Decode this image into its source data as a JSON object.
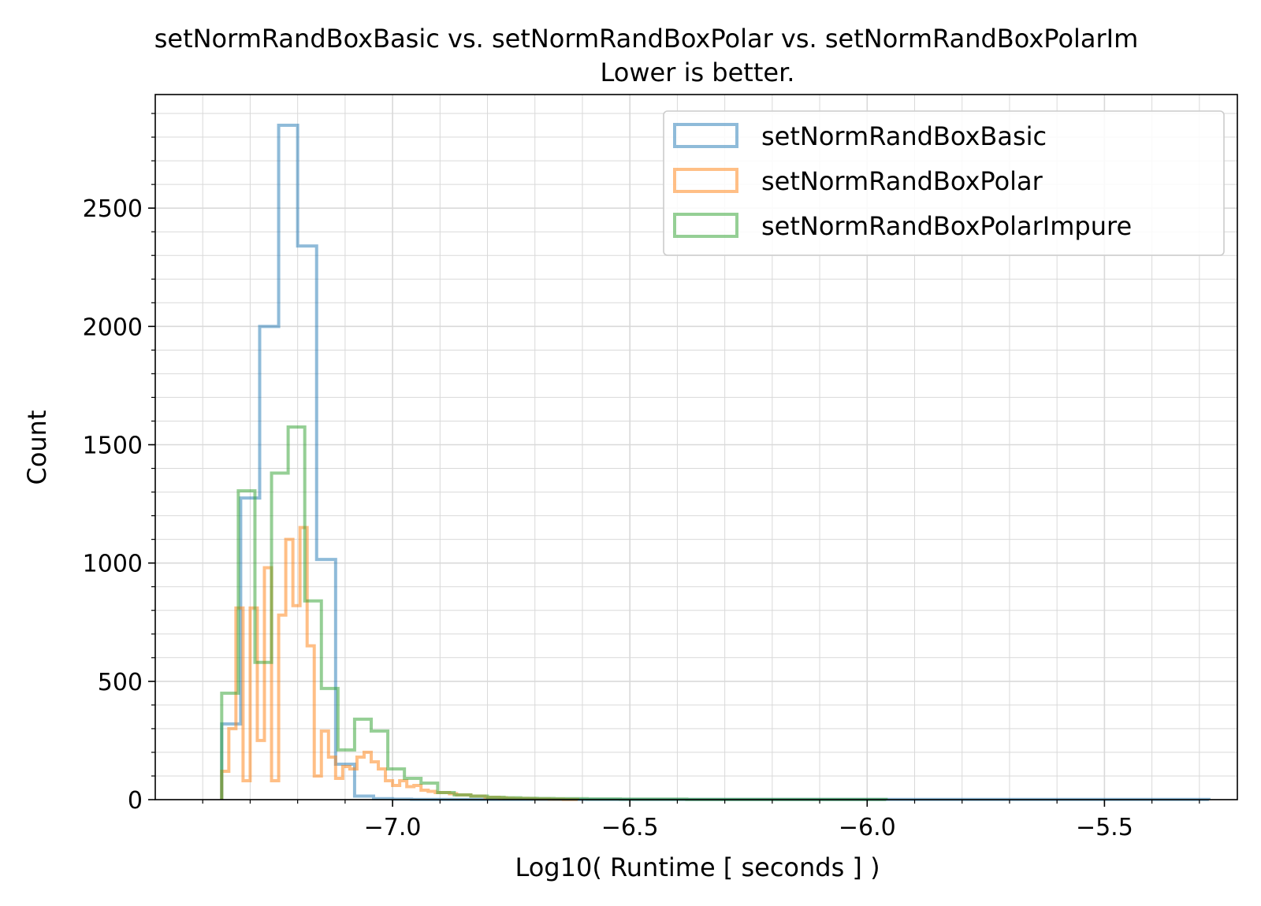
{
  "colors": {
    "basic": "#1f77b4",
    "polar": "#ff7f0e",
    "impure": "#2ca02c",
    "grid": "#d9d9d9",
    "axis": "#000000"
  },
  "chart_data": {
    "type": "histogram",
    "title": "setNormRandBoxBasic vs. setNormRandBoxPolar vs. setNormRandBoxPolarIm",
    "subtitle": "Lower is better.",
    "xlabel": "Log10( Runtime [ seconds ] )",
    "ylabel": "Count",
    "xlim": [
      -7.5,
      -5.22
    ],
    "ylim": [
      0,
      2980
    ],
    "xticks": [
      -7.0,
      -6.5,
      -6.0,
      -5.5
    ],
    "xtick_labels": [
      "−7.0",
      "−6.5",
      "−6.0",
      "−5.5"
    ],
    "yticks": [
      0,
      500,
      1000,
      1500,
      2000,
      2500
    ],
    "ytick_labels": [
      "0",
      "500",
      "1000",
      "1500",
      "2000",
      "2500"
    ],
    "grid": "on, major and minor",
    "legend_position": "top-right",
    "series": [
      {
        "name": "setNormRandBoxBasic",
        "color": "basic",
        "edges": [
          -7.36,
          -7.32,
          -7.28,
          -7.24,
          -7.2,
          -7.16,
          -7.12,
          -7.08,
          -7.04,
          -7.0,
          -6.96,
          -6.92,
          -6.88,
          -6.84,
          -6.8,
          -6.76,
          -6.72,
          -6.68,
          -6.64,
          -6.6,
          -6.56,
          -6.52,
          -6.48,
          -6.44,
          -6.4,
          -6.36,
          -6.32,
          -6.28,
          -6.24,
          -6.2,
          -6.16,
          -6.12,
          -6.08,
          -6.04,
          -6.0,
          -5.96,
          -5.92,
          -5.88,
          -5.84,
          -5.8,
          -5.76,
          -5.72,
          -5.68,
          -5.64,
          -5.6,
          -5.56,
          -5.52,
          -5.48,
          -5.44,
          -5.4,
          -5.36,
          -5.32,
          -5.28
        ],
        "counts": [
          320,
          1275,
          2000,
          2850,
          2340,
          1015,
          150,
          15,
          4,
          2,
          1,
          1,
          1,
          1,
          1,
          1,
          1,
          1,
          1,
          1,
          1,
          1,
          1,
          1,
          1,
          1,
          1,
          1,
          1,
          1,
          1,
          1,
          1,
          1,
          1,
          1,
          1,
          1,
          1,
          1,
          1,
          1,
          1,
          1,
          1,
          1,
          1,
          1,
          1,
          1,
          1,
          1
        ]
      },
      {
        "name": "setNormRandBoxPolar",
        "color": "polar",
        "edges": [
          -7.36,
          -7.345,
          -7.33,
          -7.315,
          -7.3,
          -7.285,
          -7.27,
          -7.255,
          -7.24,
          -7.225,
          -7.21,
          -7.195,
          -7.18,
          -7.165,
          -7.15,
          -7.135,
          -7.12,
          -7.105,
          -7.09,
          -7.075,
          -7.06,
          -7.045,
          -7.03,
          -7.015,
          -7.0,
          -6.985,
          -6.97,
          -6.955,
          -6.94,
          -6.925,
          -6.91,
          -6.895,
          -6.88,
          -6.865,
          -6.85,
          -6.835,
          -6.82,
          -6.805,
          -6.79,
          -6.775,
          -6.76,
          -6.745,
          -6.73,
          -6.715,
          -6.7,
          -6.685,
          -6.67,
          -6.655,
          -6.64,
          -6.625,
          -6.61
        ],
        "counts": [
          120,
          300,
          810,
          80,
          810,
          250,
          980,
          80,
          780,
          1100,
          820,
          1150,
          650,
          100,
          290,
          180,
          90,
          140,
          130,
          180,
          200,
          160,
          130,
          80,
          60,
          80,
          55,
          60,
          40,
          35,
          30,
          30,
          25,
          20,
          20,
          15,
          15,
          10,
          10,
          8,
          6,
          5,
          5,
          4,
          3,
          3,
          2,
          2,
          1,
          1
        ]
      },
      {
        "name": "setNormRandBoxPolarImpure",
        "color": "impure",
        "edges": [
          -7.36,
          -7.325,
          -7.29,
          -7.255,
          -7.22,
          -7.185,
          -7.15,
          -7.115,
          -7.08,
          -7.045,
          -7.01,
          -6.975,
          -6.94,
          -6.905,
          -6.87,
          -6.835,
          -6.8,
          -6.765,
          -6.73,
          -6.695,
          -6.66,
          -6.625,
          -6.59,
          -6.555,
          -6.52,
          -6.485,
          -6.45,
          -6.415,
          -6.38,
          -6.345,
          -6.31,
          -6.275,
          -6.24,
          -6.205,
          -6.17,
          -6.135,
          -6.1,
          -6.065,
          -6.03,
          -5.995,
          -5.96
        ],
        "counts": [
          450,
          1305,
          580,
          1380,
          1575,
          840,
          470,
          210,
          340,
          290,
          130,
          90,
          70,
          30,
          20,
          15,
          10,
          8,
          6,
          5,
          4,
          4,
          3,
          3,
          2,
          2,
          2,
          2,
          1,
          1,
          1,
          1,
          1,
          1,
          1,
          1,
          1,
          1,
          1,
          1
        ]
      }
    ]
  }
}
